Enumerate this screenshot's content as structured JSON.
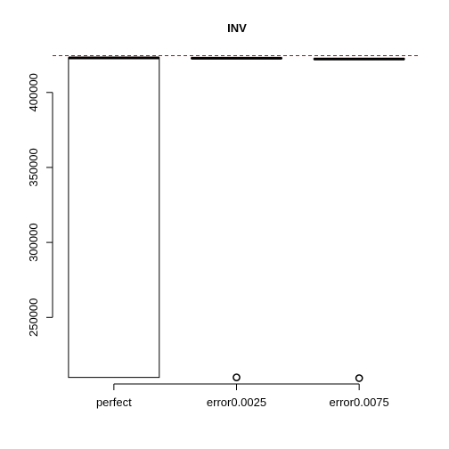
{
  "chart_data": {
    "type": "boxplot",
    "title": "INV",
    "xlabel": "",
    "ylabel": "",
    "ylim": [
      208000,
      426000
    ],
    "yticks": [
      250000,
      300000,
      350000,
      400000
    ],
    "ytick_labels": [
      "250000",
      "300000",
      "350000",
      "400000"
    ],
    "categories": [
      "perfect",
      "error0.0025",
      "error0.0075"
    ],
    "boxes": [
      {
        "category": "perfect",
        "min": 210000,
        "q1": 210000,
        "median": 423000,
        "q3": 423200,
        "max": 423200,
        "outliers": []
      },
      {
        "category": "error0.0025",
        "min": 422800,
        "q1": 422800,
        "median": 422800,
        "q3": 423000,
        "max": 423000,
        "outliers": [
          210000
        ]
      },
      {
        "category": "error0.0075",
        "min": 422300,
        "q1": 422300,
        "median": 422300,
        "q3": 422500,
        "max": 422500,
        "outliers": [
          209500
        ]
      }
    ],
    "reference_line": {
      "y": 424500,
      "color": "#cc0000",
      "style": "dashed"
    },
    "grid": false,
    "legend": "none"
  }
}
